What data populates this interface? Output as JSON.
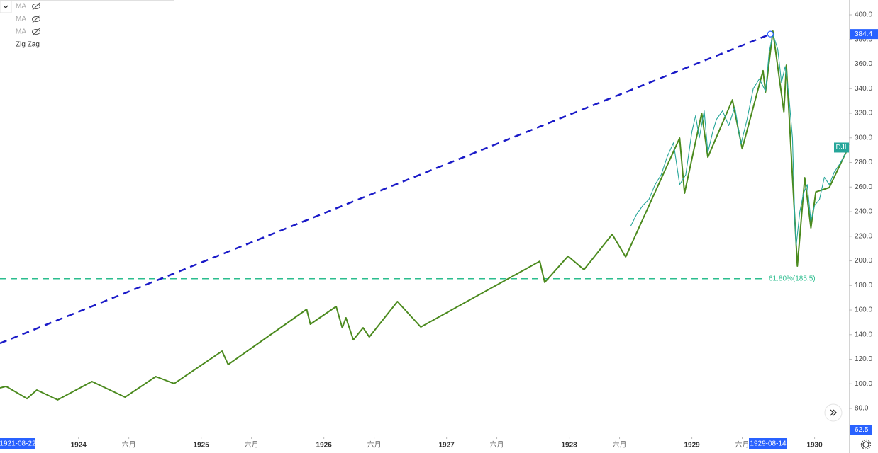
{
  "chart_data": {
    "type": "line",
    "indicators": [
      "MA",
      "MA",
      "MA",
      "Zig Zag"
    ],
    "series": [
      {
        "name": "Zig Zag",
        "color": "#4b8a1e",
        "x": [
          1923.36,
          1923.41,
          1923.58,
          1923.66,
          1923.83,
          1924.11,
          1924.38,
          1924.63,
          1924.78,
          1925.17,
          1925.22,
          1925.86,
          1925.89,
          1926.1,
          1926.15,
          1926.18,
          1926.24,
          1926.32,
          1926.37,
          1926.6,
          1926.79,
          1927.76,
          1927.8,
          1927.99,
          1928.12,
          1928.35,
          1928.46,
          1928.9,
          1928.94,
          1929.08,
          1929.13,
          1929.33,
          1929.41,
          1929.58,
          1929.6,
          1929.66,
          1929.75,
          1929.77,
          1929.86,
          1929.92,
          1929.97,
          1930.01,
          1930.12,
          1930.27
        ],
        "values": [
          96.7,
          97.9,
          88,
          95,
          87,
          101.9,
          89.2,
          105.9,
          100.2,
          126.6,
          115.7,
          160.6,
          148.5,
          162.9,
          145.6,
          153.7,
          135.8,
          145.6,
          138.1,
          166.9,
          146.2,
          199.7,
          182.5,
          203.8,
          192.8,
          221.6,
          203.2,
          299.9,
          255,
          320,
          284.3,
          330.9,
          291.2,
          354.6,
          337.3,
          386.8,
          321.2,
          359.1,
          195.7,
          267.6,
          226.8,
          256,
          259.6,
          291.2
        ]
      },
      {
        "name": "DJI",
        "color": "#26a69a",
        "x": [
          1928.5,
          1928.55,
          1928.6,
          1928.65,
          1928.7,
          1928.75,
          1928.8,
          1928.85,
          1928.9,
          1928.95,
          1929.0,
          1929.03,
          1929.06,
          1929.1,
          1929.13,
          1929.17,
          1929.2,
          1929.25,
          1929.3,
          1929.35,
          1929.4,
          1929.45,
          1929.5,
          1929.55,
          1929.6,
          1929.63,
          1929.66,
          1929.7,
          1929.73,
          1929.76,
          1929.79,
          1929.82,
          1929.84,
          1929.85,
          1929.88,
          1929.91,
          1929.94,
          1929.97,
          1930.0,
          1930.04,
          1930.08,
          1930.12,
          1930.16,
          1930.2,
          1930.24,
          1930.28
        ],
        "values": [
          228,
          238,
          245,
          250,
          262,
          270,
          285,
          296,
          262,
          270,
          305,
          318,
          300,
          322,
          288,
          305,
          315,
          322,
          310,
          325,
          295,
          315,
          340,
          348,
          338,
          370,
          384.4,
          372,
          345,
          358,
          335,
          300,
          230,
          212,
          240,
          255,
          262,
          232,
          245,
          250,
          268,
          262,
          272,
          278,
          285,
          295
        ]
      }
    ],
    "trendline": {
      "x": [
        1923.36,
        1929.64
      ],
      "values": [
        133,
        384.4
      ],
      "color": "#1a1ac8"
    },
    "fib_level": {
      "value": 185.5,
      "label": "61.80%(185.5)",
      "color": "#2bbd8e"
    },
    "low_price_label": 62.5,
    "date_markers": [
      "1921-08-22",
      "1929-08-14"
    ],
    "xlim": [
      1923.36,
      1930.28
    ],
    "ylim": [
      57,
      412.1
    ],
    "xticks": [
      {
        "value": 1924,
        "label": "1924"
      },
      {
        "value": 1924.41,
        "label": "六月"
      },
      {
        "value": 1925,
        "label": "1925"
      },
      {
        "value": 1925.41,
        "label": "六月"
      },
      {
        "value": 1926,
        "label": "1926"
      },
      {
        "value": 1926.41,
        "label": "六月"
      },
      {
        "value": 1927,
        "label": "1927"
      },
      {
        "value": 1927.41,
        "label": "六月"
      },
      {
        "value": 1928,
        "label": "1928"
      },
      {
        "value": 1928.41,
        "label": "六月"
      },
      {
        "value": 1929,
        "label": "1929"
      },
      {
        "value": 1929.41,
        "label": "六月"
      },
      {
        "value": 1930,
        "label": "1930"
      }
    ],
    "yticks": [
      {
        "value": 80,
        "label": "80.0"
      },
      {
        "value": 100,
        "label": "100.0"
      },
      {
        "value": 120,
        "label": "120.0"
      },
      {
        "value": 140,
        "label": "140.0"
      },
      {
        "value": 160,
        "label": "160.0"
      },
      {
        "value": 180,
        "label": "180.0"
      },
      {
        "value": 200,
        "label": "200.0"
      },
      {
        "value": 220,
        "label": "220.0"
      },
      {
        "value": 240,
        "label": "240.0"
      },
      {
        "value": 260,
        "label": "260.0"
      },
      {
        "value": 280,
        "label": "280.0"
      },
      {
        "value": 300,
        "label": "300.0"
      },
      {
        "value": 320,
        "label": "320.0"
      },
      {
        "value": 340,
        "label": "340.0"
      },
      {
        "value": 360,
        "label": "360.0"
      },
      {
        "value": 380,
        "label": "380.0"
      },
      {
        "value": 400,
        "label": "400.0"
      }
    ],
    "grid": false
  }
}
